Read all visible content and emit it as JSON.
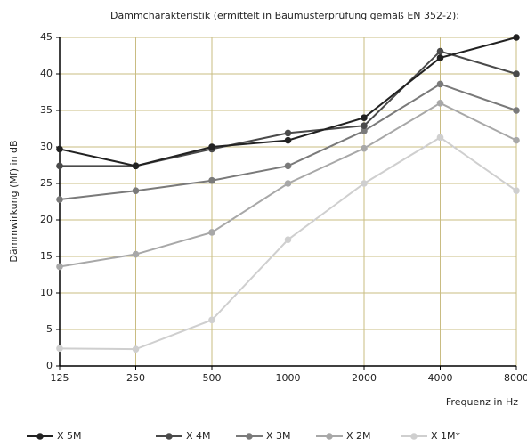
{
  "chart_data": {
    "type": "line",
    "title": "Dämmcharakteristik (ermittelt in Baumusterprüfung gemäß EN 352-2):",
    "y_label": "Dämmwirkung (Mf) in dB",
    "x_label": "Frequenz in Hz",
    "categories": [
      "125",
      "250",
      "500",
      "1000",
      "2000",
      "4000",
      "8000"
    ],
    "series": [
      {
        "name": "X 5M",
        "color": "#222222",
        "values": [
          29.7,
          27.4,
          30.0,
          30.9,
          34.0,
          42.2,
          45.0
        ]
      },
      {
        "name": "X 4M",
        "color": "#4a4a4a",
        "values": [
          27.4,
          27.4,
          29.7,
          31.9,
          32.9,
          43.1,
          40.0
        ]
      },
      {
        "name": "X 3M",
        "color": "#7a7a7a",
        "values": [
          22.8,
          24.0,
          25.4,
          27.4,
          32.2,
          38.6,
          35.0
        ]
      },
      {
        "name": "X 2M",
        "color": "#a8a8a8",
        "values": [
          13.6,
          15.3,
          18.3,
          25.0,
          29.8,
          36.0,
          30.9
        ]
      },
      {
        "name": "X 1M*",
        "color": "#cfcfcf",
        "values": [
          2.4,
          2.3,
          6.3,
          17.3,
          25.0,
          31.3,
          24.0
        ]
      }
    ],
    "ylim": [
      0,
      45
    ],
    "yticks": [
      0,
      5,
      10,
      15,
      20,
      25,
      30,
      35,
      40,
      45
    ],
    "grid": true,
    "grid_color": "#c9bc82",
    "legend": "bottom"
  }
}
